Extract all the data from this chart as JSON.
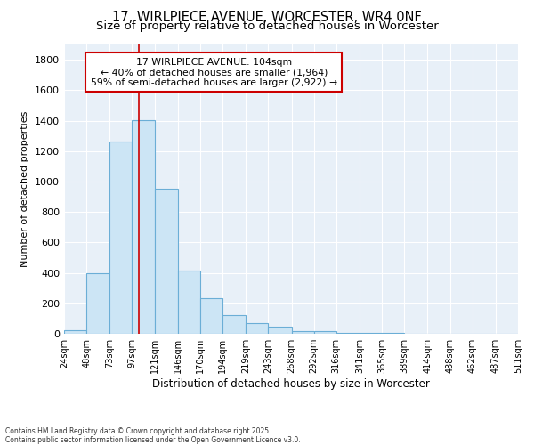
{
  "title": "17, WIRLPIECE AVENUE, WORCESTER, WR4 0NF",
  "subtitle": "Size of property relative to detached houses in Worcester",
  "xlabel": "Distribution of detached houses by size in Worcester",
  "ylabel": "Number of detached properties",
  "footer_line1": "Contains HM Land Registry data © Crown copyright and database right 2025.",
  "footer_line2": "Contains public sector information licensed under the Open Government Licence v3.0.",
  "bin_labels": [
    "24sqm",
    "48sqm",
    "73sqm",
    "97sqm",
    "121sqm",
    "146sqm",
    "170sqm",
    "194sqm",
    "219sqm",
    "243sqm",
    "268sqm",
    "292sqm",
    "316sqm",
    "341sqm",
    "365sqm",
    "389sqm",
    "414sqm",
    "438sqm",
    "462sqm",
    "487sqm",
    "511sqm"
  ],
  "bin_edges": [
    24,
    48,
    73,
    97,
    121,
    146,
    170,
    194,
    219,
    243,
    268,
    292,
    316,
    341,
    365,
    389,
    414,
    438,
    462,
    487,
    511
  ],
  "bar_heights": [
    25,
    395,
    1265,
    1405,
    955,
    415,
    235,
    120,
    70,
    45,
    20,
    15,
    8,
    5,
    3,
    2,
    2,
    2,
    2,
    2
  ],
  "bar_color": "#cce5f5",
  "bar_edge_color": "#6baed6",
  "vline_x": 104,
  "vline_color": "#cc0000",
  "annotation_line1": "17 WIRLPIECE AVENUE: 104sqm",
  "annotation_line2": "← 40% of detached houses are smaller (1,964)",
  "annotation_line3": "59% of semi-detached houses are larger (2,922) →",
  "annotation_box_color": "#cc0000",
  "annotation_bg_color": "#ffffff",
  "ylim": [
    0,
    1900
  ],
  "yticks": [
    0,
    200,
    400,
    600,
    800,
    1000,
    1200,
    1400,
    1600,
    1800
  ],
  "background_color": "#ffffff",
  "plot_bg_color": "#e8f0f8",
  "grid_color": "#ffffff",
  "title_fontsize": 10.5,
  "subtitle_fontsize": 9.5,
  "ylabel_fontsize": 8,
  "xlabel_fontsize": 8.5,
  "tick_fontsize": 7,
  "annotation_fontsize": 7.8,
  "footer_fontsize": 5.5
}
